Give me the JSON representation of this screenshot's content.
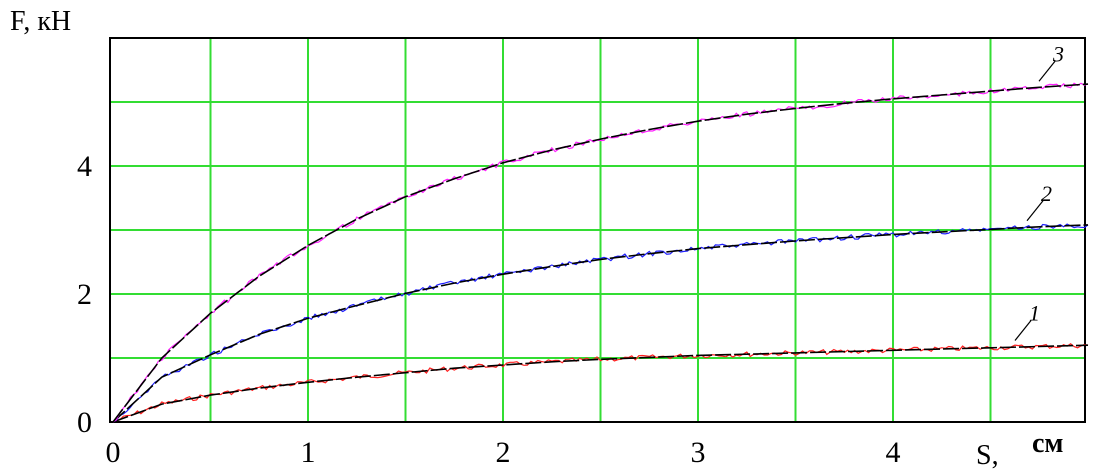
{
  "chart_data": {
    "type": "line",
    "ylabel": "F, кН",
    "xlabel_prefix": "S,",
    "xlabel_unit": "см",
    "xlim": [
      0,
      5
    ],
    "ylim": [
      0,
      6
    ],
    "grid": true,
    "grid_color": "#33dd33",
    "fit_color": "#000000",
    "x_ticks": [
      {
        "value": 0,
        "label": "0"
      },
      {
        "value": 1,
        "label": "1"
      },
      {
        "value": 2,
        "label": "2"
      },
      {
        "value": 3,
        "label": "3"
      },
      {
        "value": 4,
        "label": "4"
      }
    ],
    "y_ticks": [
      {
        "value": 0,
        "label": "0"
      },
      {
        "value": 2,
        "label": "2"
      },
      {
        "value": 4,
        "label": "4"
      }
    ],
    "x": [
      0,
      0.25,
      0.5,
      0.75,
      1,
      1.25,
      1.5,
      1.75,
      2,
      2.25,
      2.5,
      2.75,
      3,
      3.25,
      3.5,
      3.75,
      4,
      4.25,
      4.5,
      4.75,
      5
    ],
    "series": [
      {
        "name": "1",
        "color": "#ff2020",
        "values": [
          0,
          0.28,
          0.42,
          0.53,
          0.62,
          0.7,
          0.77,
          0.84,
          0.89,
          0.94,
          0.98,
          1.01,
          1.04,
          1.06,
          1.08,
          1.1,
          1.12,
          1.14,
          1.16,
          1.18,
          1.2
        ]
      },
      {
        "name": "2",
        "color": "#2020ff",
        "values": [
          0,
          0.7,
          1.05,
          1.37,
          1.62,
          1.82,
          2.01,
          2.17,
          2.31,
          2.43,
          2.54,
          2.63,
          2.71,
          2.77,
          2.83,
          2.88,
          2.93,
          2.97,
          3.01,
          3.05,
          3.08
        ]
      },
      {
        "name": "3",
        "color": "#ff20ff",
        "values": [
          0,
          1.0,
          1.7,
          2.28,
          2.76,
          3.17,
          3.52,
          3.8,
          4.05,
          4.25,
          4.42,
          4.57,
          4.7,
          4.81,
          4.9,
          4.98,
          5.05,
          5.11,
          5.17,
          5.23,
          5.28
        ]
      }
    ]
  }
}
